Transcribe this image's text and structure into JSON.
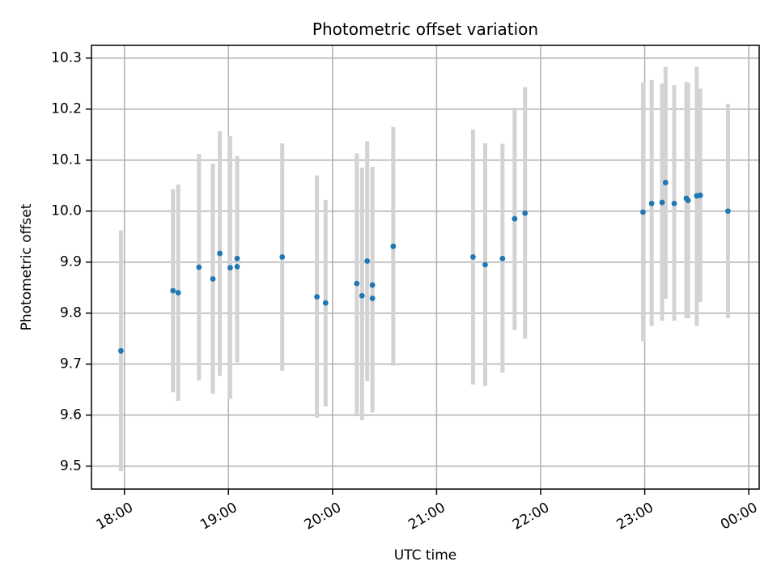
{
  "chart_data": {
    "type": "scatter",
    "title": "Photometric offset variation",
    "xlabel": "UTC time",
    "ylabel": "Photometric offset",
    "x_unit": "hours (UTC)",
    "xlim": [
      "17:41",
      "00:06"
    ],
    "ylim": [
      9.455,
      10.325
    ],
    "grid": true,
    "x_ticks": [
      "18:00",
      "19:00",
      "20:00",
      "21:00",
      "22:00",
      "23:00",
      "00:00"
    ],
    "y_ticks": [
      "9.5",
      "9.6",
      "9.7",
      "9.8",
      "9.9",
      "10.0",
      "10.1",
      "10.2",
      "10.3"
    ],
    "series": [
      {
        "marker_color": "#1f77b4",
        "errorbar_color": "#d3d3d3",
        "points": [
          {
            "time": "17:58",
            "y": 9.726,
            "low": 9.49,
            "high": 9.962
          },
          {
            "time": "18:28",
            "y": 9.844,
            "low": 9.645,
            "high": 10.043
          },
          {
            "time": "18:31",
            "y": 9.84,
            "low": 9.628,
            "high": 10.052
          },
          {
            "time": "18:43",
            "y": 9.89,
            "low": 9.668,
            "high": 10.112
          },
          {
            "time": "18:51",
            "y": 9.867,
            "low": 9.642,
            "high": 10.093
          },
          {
            "time": "18:55",
            "y": 9.917,
            "low": 9.677,
            "high": 10.157
          },
          {
            "time": "19:01",
            "y": 9.889,
            "low": 9.632,
            "high": 10.147
          },
          {
            "time": "19:05",
            "y": 9.907,
            "low": 9.705,
            "high": 10.108
          },
          {
            "time": "19:05",
            "y": 9.891,
            "low": 9.703,
            "high": 10.079
          },
          {
            "time": "19:31",
            "y": 9.91,
            "low": 9.687,
            "high": 10.133
          },
          {
            "time": "19:51",
            "y": 9.832,
            "low": 9.595,
            "high": 10.07
          },
          {
            "time": "19:56",
            "y": 9.82,
            "low": 9.617,
            "high": 10.022
          },
          {
            "time": "20:14",
            "y": 9.858,
            "low": 9.602,
            "high": 10.113
          },
          {
            "time": "20:17",
            "y": 9.834,
            "low": 9.59,
            "high": 10.085
          },
          {
            "time": "20:20",
            "y": 9.902,
            "low": 9.667,
            "high": 10.137
          },
          {
            "time": "20:23",
            "y": 9.829,
            "low": 9.605,
            "high": 10.087
          },
          {
            "time": "20:23",
            "y": 9.855,
            "low": 9.625,
            "high": 10.085
          },
          {
            "time": "20:35",
            "y": 9.931,
            "low": 9.697,
            "high": 10.165
          },
          {
            "time": "21:21",
            "y": 9.91,
            "low": 9.66,
            "high": 10.16
          },
          {
            "time": "21:28",
            "y": 9.895,
            "low": 9.657,
            "high": 10.133
          },
          {
            "time": "21:38",
            "y": 9.907,
            "low": 9.683,
            "high": 10.132
          },
          {
            "time": "21:45",
            "y": 9.985,
            "low": 9.767,
            "high": 10.203
          },
          {
            "time": "21:51",
            "y": 9.996,
            "low": 9.75,
            "high": 10.243
          },
          {
            "time": "22:59",
            "y": 9.998,
            "low": 9.745,
            "high": 10.252
          },
          {
            "time": "23:04",
            "y": 10.015,
            "low": 9.775,
            "high": 10.257
          },
          {
            "time": "23:10",
            "y": 10.017,
            "low": 9.785,
            "high": 10.25
          },
          {
            "time": "23:12",
            "y": 10.056,
            "low": 9.828,
            "high": 10.283
          },
          {
            "time": "23:17",
            "y": 10.015,
            "low": 9.785,
            "high": 10.247
          },
          {
            "time": "23:24",
            "y": 10.025,
            "low": 9.79,
            "high": 10.253
          },
          {
            "time": "23:25",
            "y": 10.021,
            "low": 9.79,
            "high": 10.252
          },
          {
            "time": "23:30",
            "y": 10.03,
            "low": 9.775,
            "high": 10.283
          },
          {
            "time": "23:32",
            "y": 10.031,
            "low": 9.822,
            "high": 10.24
          },
          {
            "time": "23:48",
            "y": 10.0,
            "low": 9.79,
            "high": 10.21
          }
        ]
      }
    ]
  }
}
